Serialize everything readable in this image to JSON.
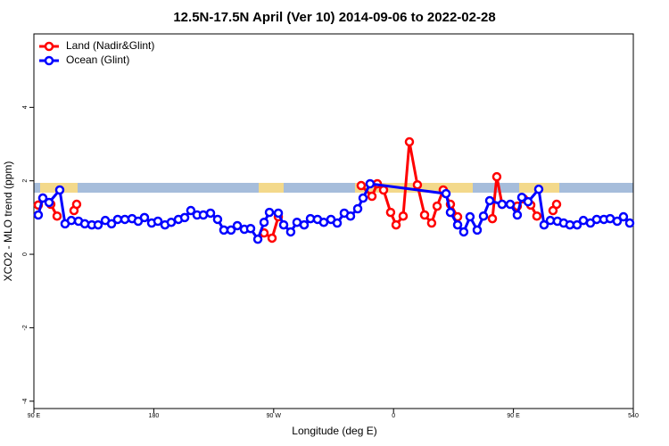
{
  "chart_data": {
    "type": "line",
    "title": "12.5N-17.5N April (Ver 10)   2014-09-06 to 2022-02-28",
    "x_label": "Longitude (deg E)",
    "y_label": "XCO2 - MLO trend (ppm)",
    "xlim": [
      90,
      540
    ],
    "ylim": [
      -4.2,
      6
    ],
    "xticks": [
      {
        "value": 90,
        "label": "90 E"
      },
      180,
      {
        "value": 270,
        "label": "90 W"
      },
      {
        "value": 360,
        "label": "0"
      },
      {
        "value": 450,
        "label": "90 E"
      },
      540
    ],
    "yticks": [
      -4,
      -2,
      0,
      2,
      4
    ],
    "legend": "top-left",
    "series": [
      {
        "name": "Land (Nadir&Glint)",
        "color": "#ff0000",
        "x": [
          93.3,
          96.7,
          102.7,
          107.4,
          null,
          120.1,
          122.1,
          null,
          262.8,
          268.8,
          273.5,
          null,
          335.7,
          343.8,
          347.8,
          352.5,
          357.8,
          361.9,
          367.2,
          371.9,
          377.9,
          383.3,
          388.6,
          392.7,
          397.3,
          402.7,
          408.1,
          null,
          434.2,
          437.5,
          441.5,
          null,
          452.9,
          457.6,
          463.0,
          467.6,
          null,
          479.7,
          482.4
        ],
        "values": [
          1.34,
          1.53,
          1.36,
          1.04,
          null,
          1.19,
          1.36,
          null,
          0.58,
          0.44,
          1.02,
          null,
          1.87,
          1.58,
          1.92,
          1.75,
          1.14,
          0.8,
          1.04,
          3.06,
          1.89,
          1.07,
          0.85,
          1.31,
          1.75,
          1.36,
          1.02,
          null,
          0.97,
          2.11,
          1.36,
          null,
          1.31,
          1.51,
          1.34,
          1.04,
          null,
          1.19,
          1.36
        ]
      },
      {
        "name": "Ocean (Glint)",
        "color": "#0000ff",
        "x": [
          93.3,
          96.7,
          101.4,
          109.4,
          113.4,
          118.1,
          123.5,
          128.2,
          133.5,
          138.2,
          143.6,
          148.3,
          152.9,
          158.3,
          163.7,
          168.3,
          173.0,
          178.4,
          183.1,
          188.4,
          193.1,
          198.5,
          203.2,
          207.8,
          212.5,
          217.2,
          222.6,
          227.9,
          232.6,
          238.0,
          242.7,
          248.0,
          252.7,
          258.1,
          262.8,
          266.8,
          273.5,
          277.5,
          282.8,
          287.5,
          292.9,
          297.6,
          302.9,
          307.6,
          313.0,
          317.7,
          323.0,
          327.7,
          333.1,
          337.1,
          342.4,
          399.4,
          402.7,
          408.1,
          412.7,
          417.4,
          422.8,
          427.5,
          432.2,
          441.5,
          447.6,
          452.9,
          456.3,
          461.0,
          469.0,
          473.0,
          477.7,
          483.0,
          487.7,
          492.4,
          497.8,
          502.5,
          507.8,
          512.5,
          517.9,
          522.6,
          527.9,
          532.6,
          537.3
        ],
        "values": [
          1.07,
          1.53,
          1.41,
          1.75,
          0.83,
          0.92,
          0.9,
          0.83,
          0.8,
          0.8,
          0.92,
          0.83,
          0.95,
          0.95,
          0.97,
          0.9,
          1.0,
          0.85,
          0.9,
          0.8,
          0.87,
          0.95,
          1.0,
          1.19,
          1.07,
          1.07,
          1.12,
          0.95,
          0.66,
          0.66,
          0.78,
          0.68,
          0.7,
          0.41,
          0.87,
          1.14,
          1.12,
          0.8,
          0.61,
          0.87,
          0.8,
          0.97,
          0.95,
          0.87,
          0.95,
          0.85,
          1.12,
          1.04,
          1.24,
          1.53,
          1.92,
          1.65,
          1.14,
          0.8,
          0.61,
          1.02,
          0.66,
          1.04,
          1.46,
          1.36,
          1.36,
          1.07,
          1.55,
          1.43,
          1.77,
          0.8,
          0.92,
          0.9,
          0.85,
          0.8,
          0.8,
          0.92,
          0.85,
          0.95,
          0.95,
          0.97,
          0.9,
          1.02,
          0.85
        ]
      }
    ]
  }
}
